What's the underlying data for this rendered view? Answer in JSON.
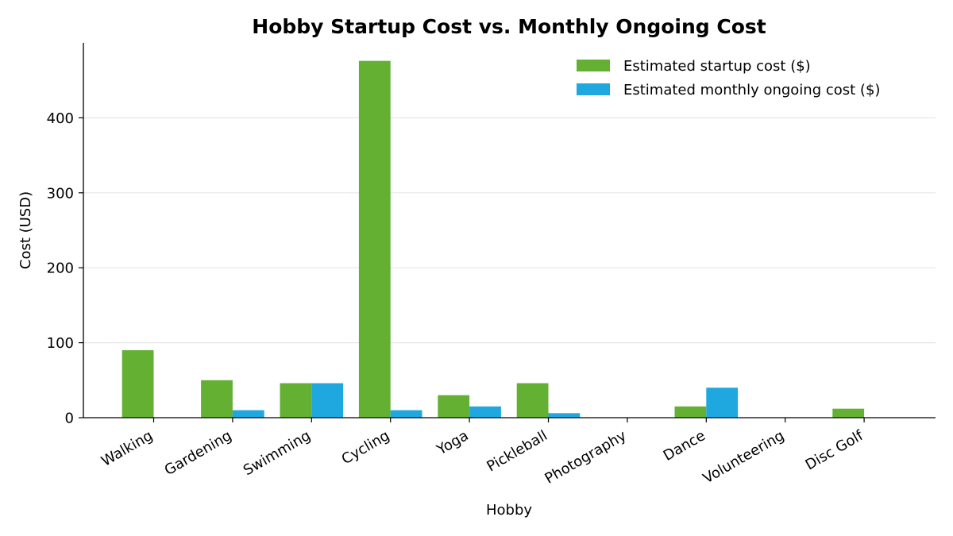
{
  "chart_data": {
    "type": "bar",
    "title": "Hobby Startup Cost vs. Monthly Ongoing Cost",
    "xlabel": "Hobby",
    "ylabel": "Cost (USD)",
    "categories": [
      "Walking",
      "Gardening",
      "Swimming",
      "Cycling",
      "Yoga",
      "Pickleball",
      "Photography",
      "Dance",
      "Volunteering",
      "Disc Golf"
    ],
    "series": [
      {
        "name": "Estimated startup cost ($)",
        "color": "#63b033",
        "values": [
          90,
          50,
          46,
          476,
          30,
          46,
          0,
          15,
          0,
          12
        ]
      },
      {
        "name": "Estimated monthly ongoing cost ($)",
        "color": "#1fa7df",
        "values": [
          0,
          10,
          46,
          10,
          15,
          6,
          0,
          40,
          0,
          0
        ]
      }
    ],
    "ylim": [
      0,
      500
    ],
    "yticks": [
      0,
      100,
      200,
      300,
      400
    ],
    "grid": true,
    "legend_position": "top-right"
  }
}
